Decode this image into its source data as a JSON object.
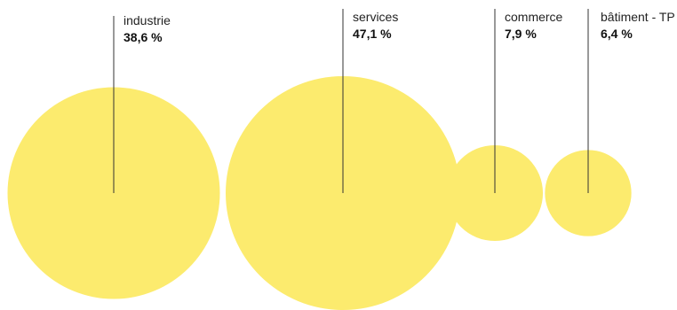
{
  "chart_data": {
    "type": "bubble",
    "title": "",
    "categories": [
      "industrie",
      "services",
      "commerce",
      "bâtiment - TP"
    ],
    "values": [
      38.6,
      47.1,
      7.9,
      6.4
    ],
    "value_labels": [
      "38,6 %",
      "47,1 %",
      "7,9 %",
      "6,4 %"
    ],
    "unit": "%",
    "colors": {
      "bubble": "#FCEB6E",
      "leader_line": "#333333",
      "text": "#222222"
    }
  }
}
